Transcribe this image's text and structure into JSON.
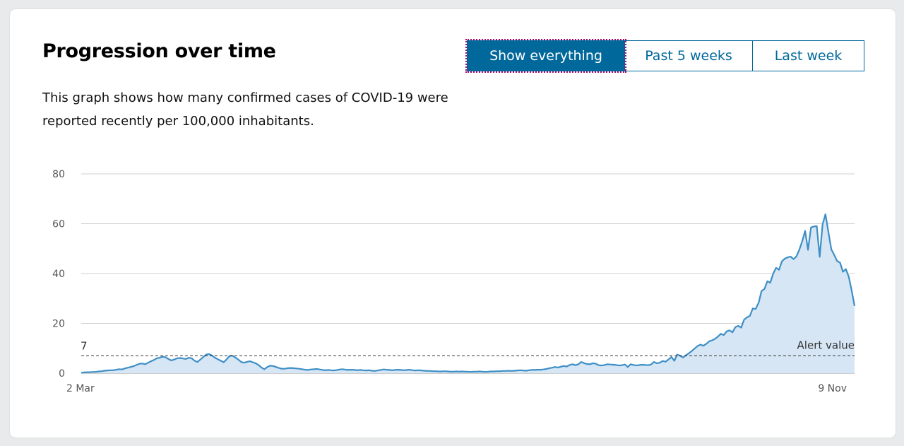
{
  "title": "Progression over time",
  "description": "This graph shows how many confirmed cases of COVID-19 were reported recently per 100,000 inhabitants.",
  "range_buttons": [
    "Show everything",
    "Past 5 weeks",
    "Last week"
  ],
  "selected_range": "Show everything",
  "colors": {
    "accent": "#01689b",
    "line": "#3d8fc6",
    "fill": "#d6e6f4",
    "focus": "#b0086e"
  },
  "chart_data": {
    "type": "area",
    "x_start_label": "2 Mar",
    "x_end_label": "9 Nov",
    "ylim": [
      0,
      80
    ],
    "yticks": [
      0,
      20,
      40,
      60,
      80
    ],
    "grid": true,
    "threshold": {
      "value": 7,
      "label": "7",
      "annotation": "Alert value"
    },
    "series": [
      {
        "values": [
          0.2,
          0.3,
          0.4,
          0.4,
          0.5,
          0.5,
          0.7,
          0.8,
          1,
          1.1,
          1.2,
          1.2,
          1.4,
          1.6,
          1.5,
          1.9,
          2.2,
          2.5,
          2.8,
          3.3,
          3.8,
          3.9,
          3.6,
          4.2,
          4.8,
          5.3,
          6,
          6.2,
          6.6,
          6.4,
          5.7,
          5.1,
          5.5,
          6,
          6.1,
          5.9,
          5.7,
          6.2,
          6,
          5,
          4.5,
          5.5,
          6.5,
          7.5,
          7.7,
          7.1,
          6.2,
          5.6,
          5,
          4.4,
          5.5,
          6.9,
          7,
          6.3,
          5.5,
          4.5,
          4.2,
          4.5,
          4.8,
          4.4,
          4,
          3.3,
          2.3,
          1.6,
          2.5,
          3,
          2.9,
          2.5,
          2.1,
          1.8,
          1.8,
          2,
          2.1,
          2,
          1.9,
          1.8,
          1.6,
          1.4,
          1.3,
          1.5,
          1.6,
          1.7,
          1.5,
          1.3,
          1.2,
          1.3,
          1.2,
          1.1,
          1.3,
          1.5,
          1.6,
          1.4,
          1.3,
          1.4,
          1.3,
          1.2,
          1.3,
          1.2,
          1.1,
          1.2,
          1,
          0.9,
          1.1,
          1.3,
          1.5,
          1.4,
          1.3,
          1.2,
          1.3,
          1.4,
          1.3,
          1.2,
          1.3,
          1.4,
          1.2,
          1.1,
          1.2,
          1.1,
          1,
          0.9,
          0.9,
          0.8,
          0.8,
          0.7,
          0.7,
          0.8,
          0.7,
          0.6,
          0.6,
          0.7,
          0.6,
          0.7,
          0.6,
          0.6,
          0.5,
          0.6,
          0.6,
          0.7,
          0.6,
          0.5,
          0.6,
          0.7,
          0.7,
          0.8,
          0.8,
          0.9,
          0.9,
          1,
          0.9,
          1,
          1.1,
          1.2,
          1.1,
          1,
          1.2,
          1.3,
          1.3,
          1.4,
          1.4,
          1.5,
          1.7,
          2,
          2.2,
          2.5,
          2.3,
          2.6,
          2.9,
          2.7,
          3.3,
          3.6,
          3.2,
          3.6,
          4.5,
          4,
          3.7,
          3.6,
          4,
          3.8,
          3.2,
          3.1,
          3.3,
          3.6,
          3.5,
          3.4,
          3.3,
          3.1,
          3.2,
          3.5,
          2.5,
          3.6,
          3.3,
          3.1,
          3.3,
          3.4,
          3.3,
          3.2,
          3.5,
          4.5,
          4,
          4.2,
          4.9,
          4.6,
          5.5,
          6.5,
          5,
          7.5,
          7,
          6.3,
          7.2,
          8,
          8.9,
          9.9,
          10.9,
          11.5,
          11,
          11.8,
          12.8,
          13.2,
          13.8,
          14.7,
          15.8,
          15.3,
          16.8,
          17.2,
          16.4,
          18.5,
          19,
          18.3,
          21.5,
          22.4,
          23,
          26,
          25.8,
          28.3,
          33,
          33.8,
          36.9,
          36.3,
          39.9,
          42.3,
          41.5,
          44.9,
          46,
          46.5,
          46.8,
          45.8,
          46.9,
          49.6,
          53,
          57.1,
          49.5,
          58.5,
          58.9,
          59,
          46.7,
          59.7,
          63.8,
          56.6,
          49.7,
          47.5,
          45,
          44.4,
          40.7,
          41.8,
          38.7,
          33.2,
          27
        ]
      }
    ]
  }
}
